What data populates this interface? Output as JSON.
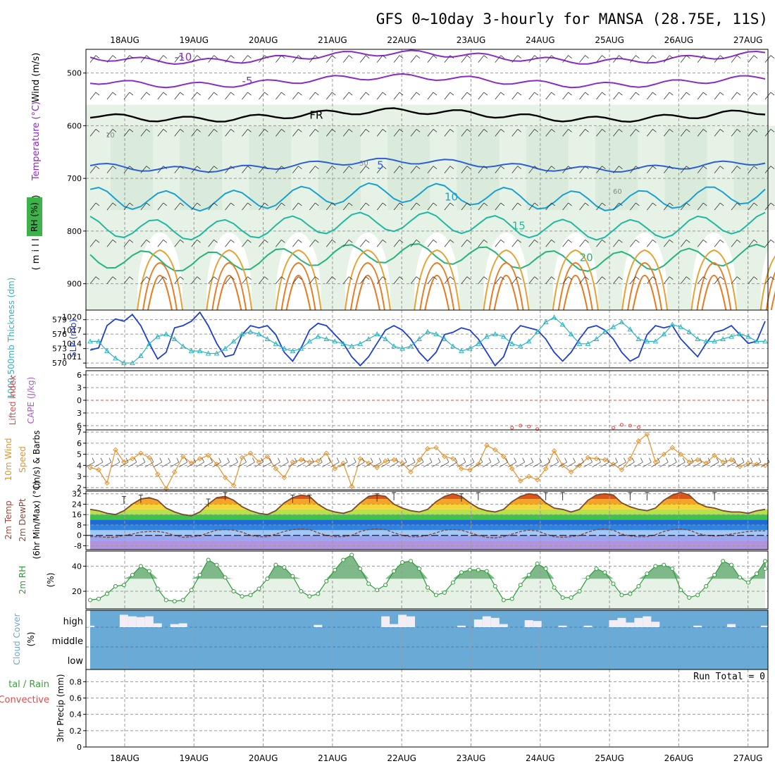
{
  "title": "GFS 0~10day 3-hourly for MANSA (28.75E, 11S)",
  "dates": [
    "18AUG",
    "19AUG",
    "20AUG",
    "21AUG",
    "22AUG",
    "23AUG",
    "24AUG",
    "25AUG",
    "26AUG",
    "27AUG"
  ],
  "colors": {
    "sky": "#6aaad6",
    "rh_fill": "#e6f2e6",
    "rh_dark": "#7fb98a",
    "temp_line": "#7a4a2a",
    "slp": "#1e3fcf",
    "thick": "#2bb5c0",
    "wind10": "#e8922a",
    "barb": "#555555",
    "rh2m": "#2f9a3a",
    "li": "#e34a4a",
    "cape": "#b05ac8",
    "cloud": "#6aaad6",
    "cloud_high": "#f3eef6"
  },
  "labels": {
    "upper_wind": "Wind (m/s)",
    "upper_temp": "Temperature (°C)",
    "upper_rh": "RH (%)",
    "millibars": "( m i l l i b a r s )",
    "thick": "1000-500mb Thickness (dm)",
    "slp": "SLP (mb)",
    "li": "Lifted Index",
    "cape": "CAPE (J/kg)",
    "wind10": "10m Wind",
    "speed": "Speed",
    "barbs_ms": "(m/s) & Barbs",
    "t2m": "2m Temp",
    "dewpt": "2m DewPt",
    "minmax": "(6hr Min/Max) (°C)",
    "rh2m": "2m RH",
    "rh2m_unit": "(%)",
    "cloud": "Cloud Cover",
    "cloud_unit": "(%)",
    "cloud_high": "high",
    "cloud_middle": "middle",
    "cloud_low": "low",
    "precip_total": "tal / Rain",
    "precip_conv": "Convective",
    "precip": "3hr Precip (mm)",
    "run_total": "Run Total = 0"
  },
  "chart_data": [
    {
      "type": "contour",
      "panel": "upper-air cross-section",
      "y_axis": "pressure (mb)",
      "yticks": [
        500,
        600,
        700,
        800,
        900
      ],
      "temperature_contours": [
        {
          "label": "-10",
          "color": "#8a2bc2",
          "approx_level_mb": 470
        },
        {
          "label": "-5",
          "color": "#8a2bc2",
          "approx_level_mb": 515
        },
        {
          "label": "FR",
          "color": "#000000",
          "approx_level_mb": 580
        },
        {
          "label": "5",
          "color": "#2c5fd6",
          "approx_level_mb": 675
        },
        {
          "label": "10",
          "color": "#1aa0d0",
          "approx_level_mb": 735
        },
        {
          "label": "15",
          "color": "#20b8a0",
          "approx_level_mb": 790
        },
        {
          "label": "20",
          "color": "#27b37a",
          "approx_level_mb": 850
        }
      ],
      "rh_labels": [
        "10",
        "30",
        "60"
      ]
    },
    {
      "type": "line",
      "panel": "thickness and SLP",
      "yticks_left": [
        570,
        573,
        576,
        579
      ],
      "yticks_right": [
        1011,
        1014,
        1017,
        1020
      ],
      "series": [
        {
          "name": "SLP (mb)",
          "axis": "right",
          "values": [
            1012.5,
            1013,
            1018,
            1019.5,
            1019,
            1020.5,
            1018,
            1014,
            1010.5,
            1012,
            1017.5,
            1018,
            1019,
            1021,
            1018,
            1014,
            1011,
            1011.5,
            1016,
            1018,
            1017.5,
            1018,
            1016,
            1012,
            1010,
            1013,
            1017,
            1018.5,
            1018,
            1016,
            1014,
            1011,
            1009,
            1011,
            1014,
            1017,
            1018,
            1017,
            1015,
            1012,
            1010,
            1012,
            1016,
            1016.5,
            1017.5,
            1017,
            1015,
            1012,
            1009,
            1011,
            1016,
            1018,
            1017.5,
            1017,
            1015,
            1012,
            1010,
            1012,
            1015,
            1017.5,
            1018,
            1017,
            1015,
            1012,
            1010,
            1011,
            1016,
            1018,
            1017.5,
            1018,
            1015,
            1013,
            1011,
            1014,
            1016.5,
            1017,
            1018,
            1016,
            1014,
            1014.5,
            1019
          ]
        },
        {
          "name": "1000-500mb Thickness (dm)",
          "axis": "left",
          "values": [
            574.5,
            574.5,
            572.5,
            571,
            570,
            570,
            571.5,
            574,
            575.5,
            576,
            575,
            573.5,
            572.5,
            572.5,
            572,
            572,
            573,
            574.5,
            576,
            576.5,
            576,
            575,
            574,
            573,
            572.5,
            573,
            574.5,
            575.5,
            575,
            574.5,
            574,
            573.5,
            574,
            575,
            576,
            575,
            573.5,
            573,
            573.5,
            575,
            576.5,
            576,
            575,
            573.5,
            572.5,
            573,
            574,
            575.5,
            576,
            575.5,
            574,
            573.5,
            574.5,
            576.5,
            578.5,
            579.5,
            578,
            576,
            574,
            574,
            575,
            576.5,
            577.5,
            578.5,
            577,
            575,
            574.5,
            574.5,
            576,
            578,
            577.5,
            576.5,
            575,
            574.5,
            574.5,
            575,
            575.5,
            576,
            575.5,
            574.5,
            574.5
          ]
        }
      ]
    },
    {
      "type": "line",
      "panel": "Lifted Index / CAPE",
      "yticks": [
        -6,
        -3,
        0,
        3,
        6
      ],
      "reference_line": 0,
      "series": [
        {
          "name": "Lifted Index",
          "points": [
            [
              50,
              6.5
            ],
            [
              51,
              6
            ],
            [
              52,
              6.2
            ],
            [
              53,
              6.8
            ],
            [
              62,
              6.5
            ],
            [
              63,
              5.8
            ],
            [
              64,
              6
            ],
            [
              65,
              6.4
            ]
          ]
        }
      ]
    },
    {
      "type": "line",
      "panel": "10m Wind",
      "yticks": [
        2,
        3,
        4,
        5,
        6,
        7
      ],
      "series": [
        {
          "name": "Speed",
          "values": [
            3.8,
            3.6,
            2.4,
            5.4,
            4.3,
            4.6,
            5.1,
            4.7,
            3.2,
            1.9,
            3.4,
            4.8,
            4.2,
            4.6,
            4.9,
            4.1,
            2.9,
            2.2,
            4.7,
            5.1,
            4.3,
            4.8,
            3.7,
            2.9,
            4.3,
            4.5,
            4.3,
            4.4,
            5.1,
            3.7,
            4.2,
            2.1,
            4.6,
            4.2,
            3.8,
            4.4,
            4.5,
            4.2,
            3.4,
            4.5,
            5.5,
            5.6,
            4.8,
            4.6,
            3.7,
            3.6,
            4.1,
            5.8,
            5.4,
            4.8,
            3.7,
            2.6,
            3.0,
            2.7,
            3.7,
            5.3,
            4.0,
            3.4,
            4.0,
            4.7,
            4.6,
            4.5,
            4.1,
            3.6,
            4.6,
            6.2,
            6.8,
            4.3,
            5.0,
            5.6,
            5.0,
            4.3,
            4.5,
            4.2,
            4.9,
            4.3,
            4.5,
            3.9,
            4.2,
            4.1,
            4.0
          ]
        }
      ]
    },
    {
      "type": "area",
      "panel": "2m Temp / DewPt",
      "yticks": [
        -8,
        0,
        8,
        16,
        24,
        32
      ],
      "series": [
        {
          "name": "2m Temp",
          "values": [
            20,
            19,
            17,
            16,
            19,
            24,
            28,
            29,
            27,
            21,
            18,
            16,
            15,
            18,
            24,
            29,
            30,
            27,
            22,
            19,
            17,
            16,
            19,
            25,
            29,
            31,
            30,
            24,
            20,
            18,
            17,
            19,
            25,
            30,
            31,
            30,
            24,
            21,
            19,
            18,
            20,
            26,
            30,
            32,
            30,
            25,
            21,
            19,
            18,
            20,
            26,
            30,
            32,
            31,
            25,
            21,
            20,
            18,
            20,
            27,
            31,
            32,
            31,
            25,
            22,
            20,
            19,
            21,
            27,
            31,
            33,
            31,
            25,
            22,
            21,
            19,
            18,
            18,
            17,
            19,
            20
          ]
        },
        {
          "name": "2m DewPt",
          "values": [
            -1,
            -1,
            -1.5,
            -1.5,
            0,
            1,
            2.5,
            3,
            3,
            2,
            0,
            -1.5,
            -1,
            -0.5,
            2,
            4,
            4.5,
            4,
            2.5,
            0,
            -1,
            -1,
            1,
            3,
            4.5,
            5,
            4.5,
            2,
            0,
            -1,
            -1,
            0,
            3,
            4.5,
            5,
            4.5,
            2,
            0,
            -1,
            -1,
            0,
            2,
            4,
            4.5,
            4,
            2,
            0,
            -1.5,
            -2,
            -1,
            1,
            3,
            4,
            3.5,
            1,
            -1,
            -1.5,
            -1,
            0,
            2.5,
            4.5,
            5,
            4,
            1,
            -0.5,
            -1,
            -1,
            0.5,
            3,
            4.5,
            5,
            4,
            1.5,
            0,
            -0.5,
            0,
            1,
            2,
            3,
            3.5,
            3.5
          ]
        },
        {
          "name": "6hr Max",
          "values": [
            [
              4,
              30
            ],
            [
              6,
              31
            ],
            [
              14,
              28
            ],
            [
              16,
              33
            ],
            [
              24,
              31
            ],
            [
              26,
              31
            ],
            [
              34,
              32
            ],
            [
              36,
              33
            ],
            [
              44,
              32
            ],
            [
              46,
              33
            ],
            [
              54,
              33
            ],
            [
              56,
              33
            ],
            [
              64,
              33
            ],
            [
              66,
              33
            ],
            [
              74,
              33
            ]
          ]
        }
      ]
    },
    {
      "type": "area",
      "panel": "2m RH",
      "yticks": [
        20,
        40
      ],
      "series": [
        {
          "name": "2m RH",
          "values": [
            13,
            14,
            18,
            24,
            25,
            33,
            40,
            36,
            22,
            13,
            12,
            13,
            21,
            33,
            45,
            41,
            31,
            20,
            16,
            17,
            22,
            30,
            41,
            39,
            32,
            20,
            16,
            18,
            28,
            37,
            45,
            49,
            38,
            26,
            21,
            25,
            36,
            43,
            44,
            38,
            23,
            17,
            19,
            27,
            35,
            37,
            37,
            36,
            24,
            13,
            14,
            25,
            33,
            42,
            38,
            23,
            15,
            15,
            20,
            31,
            38,
            35,
            26,
            17,
            18,
            24,
            34,
            40,
            41,
            38,
            21,
            15,
            17,
            24,
            33,
            44,
            41,
            31,
            27,
            34,
            44,
            38
          ]
        }
      ]
    },
    {
      "type": "bar",
      "panel": "Cloud Cover",
      "series": [
        {
          "name": "high",
          "values": [
            10,
            0,
            0,
            0,
            80,
            70,
            65,
            70,
            25,
            0,
            20,
            25,
            0,
            0,
            0,
            0,
            0,
            0,
            0,
            0,
            0,
            0,
            0,
            0,
            0,
            0,
            0,
            15,
            0,
            0,
            0,
            0,
            0,
            0,
            0,
            70,
            20,
            80,
            70,
            0,
            0,
            0,
            0,
            0,
            10,
            0,
            50,
            70,
            60,
            20,
            0,
            0,
            45,
            40,
            0,
            0,
            10,
            0,
            0,
            10,
            0,
            0,
            45,
            60,
            30,
            60,
            70,
            35,
            0,
            0,
            0,
            0,
            10,
            0,
            0,
            0,
            20,
            0,
            0,
            0,
            10,
            0
          ]
        }
      ]
    },
    {
      "type": "bar",
      "panel": "3hr Precip",
      "yticks": [
        0,
        0.2,
        0.4,
        0.6,
        0.8
      ],
      "series": [
        {
          "name": "Total / Rain",
          "values": []
        },
        {
          "name": "Convective",
          "values": []
        }
      ]
    }
  ]
}
